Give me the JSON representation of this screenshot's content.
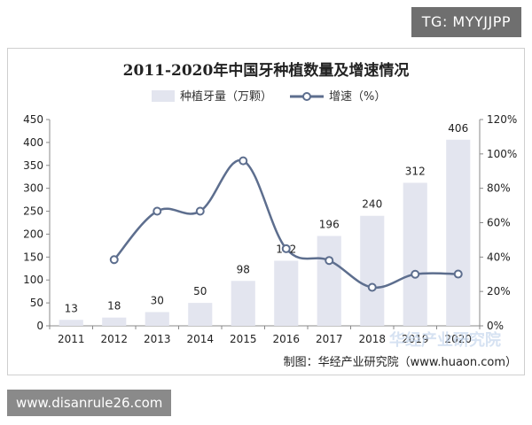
{
  "watermark_top": "TG: MYYJJPP",
  "footer_site": "www.disanrule26.com",
  "chart_data": {
    "type": "bar",
    "title": "2011-2020年中国牙种植数量及增速情况",
    "categories": [
      "2011",
      "2012",
      "2013",
      "2014",
      "2015",
      "2016",
      "2017",
      "2018",
      "2019",
      "2020"
    ],
    "series": [
      {
        "name": "种植牙量（万颗）",
        "type": "bar",
        "axis": "left",
        "values": [
          13,
          18,
          30,
          50,
          98,
          142,
          196,
          240,
          312,
          406
        ]
      },
      {
        "name": "增速（%）",
        "type": "line",
        "axis": "right",
        "values": [
          null,
          38.5,
          66.7,
          66.7,
          96,
          44.9,
          38.0,
          22.4,
          30.0,
          30.1
        ]
      }
    ],
    "left_axis": {
      "min": 0,
      "max": 450,
      "step": 50
    },
    "right_axis": {
      "min": 0,
      "max": 120,
      "step": 20,
      "suffix": "%"
    },
    "legend_position": "top",
    "grid": false,
    "colors": {
      "bar": "#e3e5ef",
      "line": "#5d6e8e",
      "marker_fill": "#ffffff",
      "text": "#222222",
      "axis": "#888888"
    },
    "source": "制图：华经产业研究院（www.huaon.com）",
    "watermark": "华经产业研究院"
  }
}
